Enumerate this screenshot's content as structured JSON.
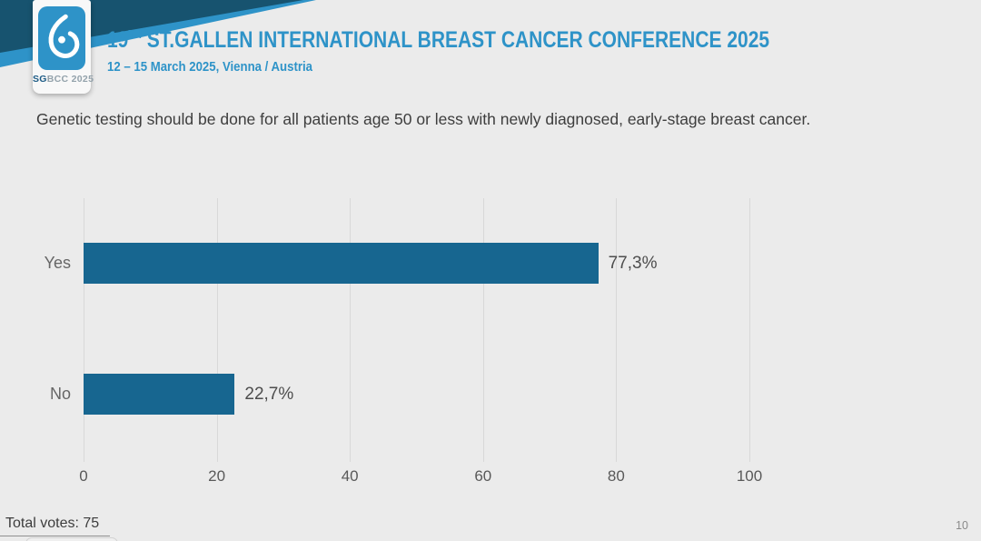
{
  "logo": {
    "caption_bold": "SG",
    "caption_rest": "BCC 2025",
    "icon": "breast-drop-icon",
    "square_color": "#2e93c8"
  },
  "header": {
    "title_number": "19",
    "title_superscript": "TH",
    "title_rest": " ST.GALLEN INTERNATIONAL BREAST CANCER CONFERENCE 2025",
    "subtitle": "12 – 15 March 2025, Vienna / Austria",
    "accent_color": "#2e93c8",
    "band_dark_color": "#17536f"
  },
  "question": "Genetic testing should be done for all patients age 50 or less with newly diagnosed, early-stage breast cancer.",
  "chart_data": {
    "type": "bar",
    "orientation": "horizontal",
    "categories": [
      "Yes",
      "No"
    ],
    "values": [
      77.3,
      22.7
    ],
    "value_labels": [
      "77,3%",
      "22,7%"
    ],
    "xticks": [
      0,
      20,
      40,
      60,
      80,
      100
    ],
    "xlim": [
      0,
      100
    ],
    "bar_color": "#176690",
    "grid": true,
    "legend": false,
    "title": "",
    "xlabel": "",
    "ylabel": ""
  },
  "footer": {
    "total_votes": "Total votes: 75",
    "page_number": "10"
  }
}
